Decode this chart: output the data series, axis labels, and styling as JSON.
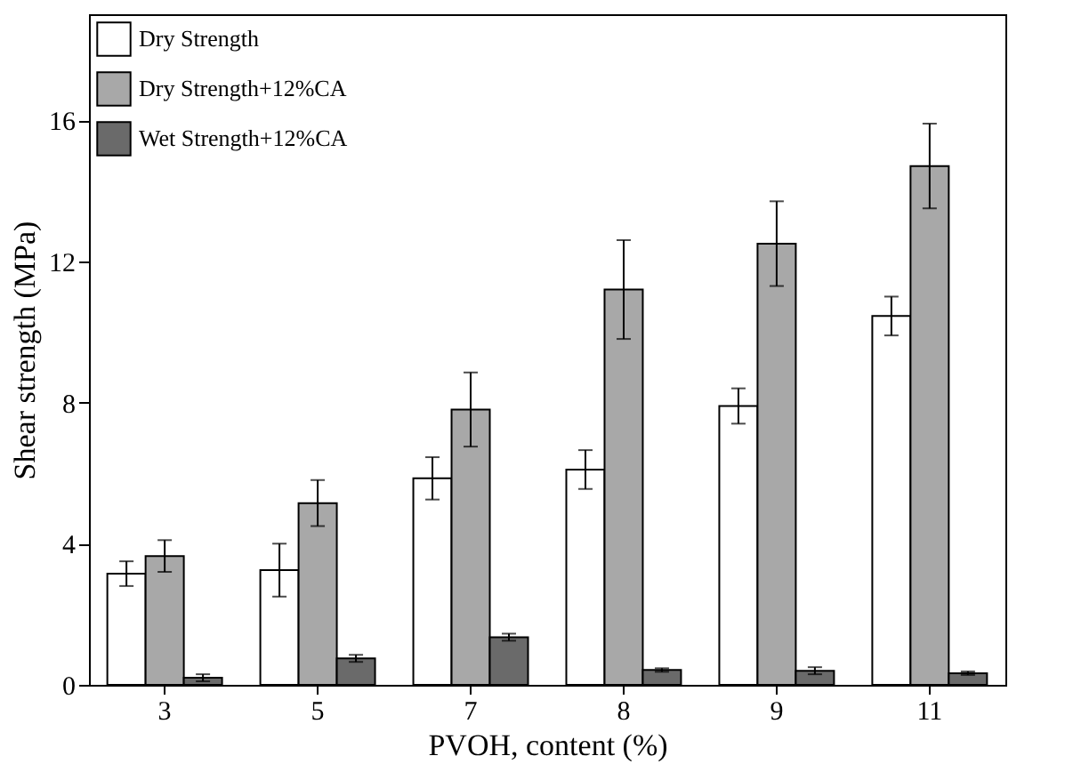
{
  "chart_data": {
    "type": "bar",
    "xlabel": "PVOH, content (%)",
    "ylabel": "Shear strength (MPa)",
    "categories": [
      "3",
      "5",
      "7",
      "8",
      "9",
      "11"
    ],
    "series": [
      {
        "name": "Dry Strength",
        "color": "#ffffff",
        "values": [
          3.15,
          3.25,
          5.85,
          6.1,
          7.9,
          10.45
        ],
        "errors": [
          0.35,
          0.75,
          0.6,
          0.55,
          0.5,
          0.55
        ]
      },
      {
        "name": "Dry Strength+12%CA",
        "color": "#a8a8a8",
        "values": [
          3.65,
          5.15,
          7.8,
          11.2,
          12.5,
          14.7
        ],
        "errors": [
          0.45,
          0.65,
          1.05,
          1.4,
          1.2,
          1.2
        ]
      },
      {
        "name": "Wet Strength+12%CA",
        "color": "#6a6a6a",
        "values": [
          0.2,
          0.75,
          1.35,
          0.42,
          0.4,
          0.33
        ],
        "errors": [
          0.1,
          0.1,
          0.1,
          0.05,
          0.1,
          0.05
        ]
      }
    ],
    "ylim": [
      0,
      19
    ],
    "yticks": [
      0,
      4,
      8,
      12,
      16
    ],
    "grid": false,
    "legend": "top left"
  }
}
